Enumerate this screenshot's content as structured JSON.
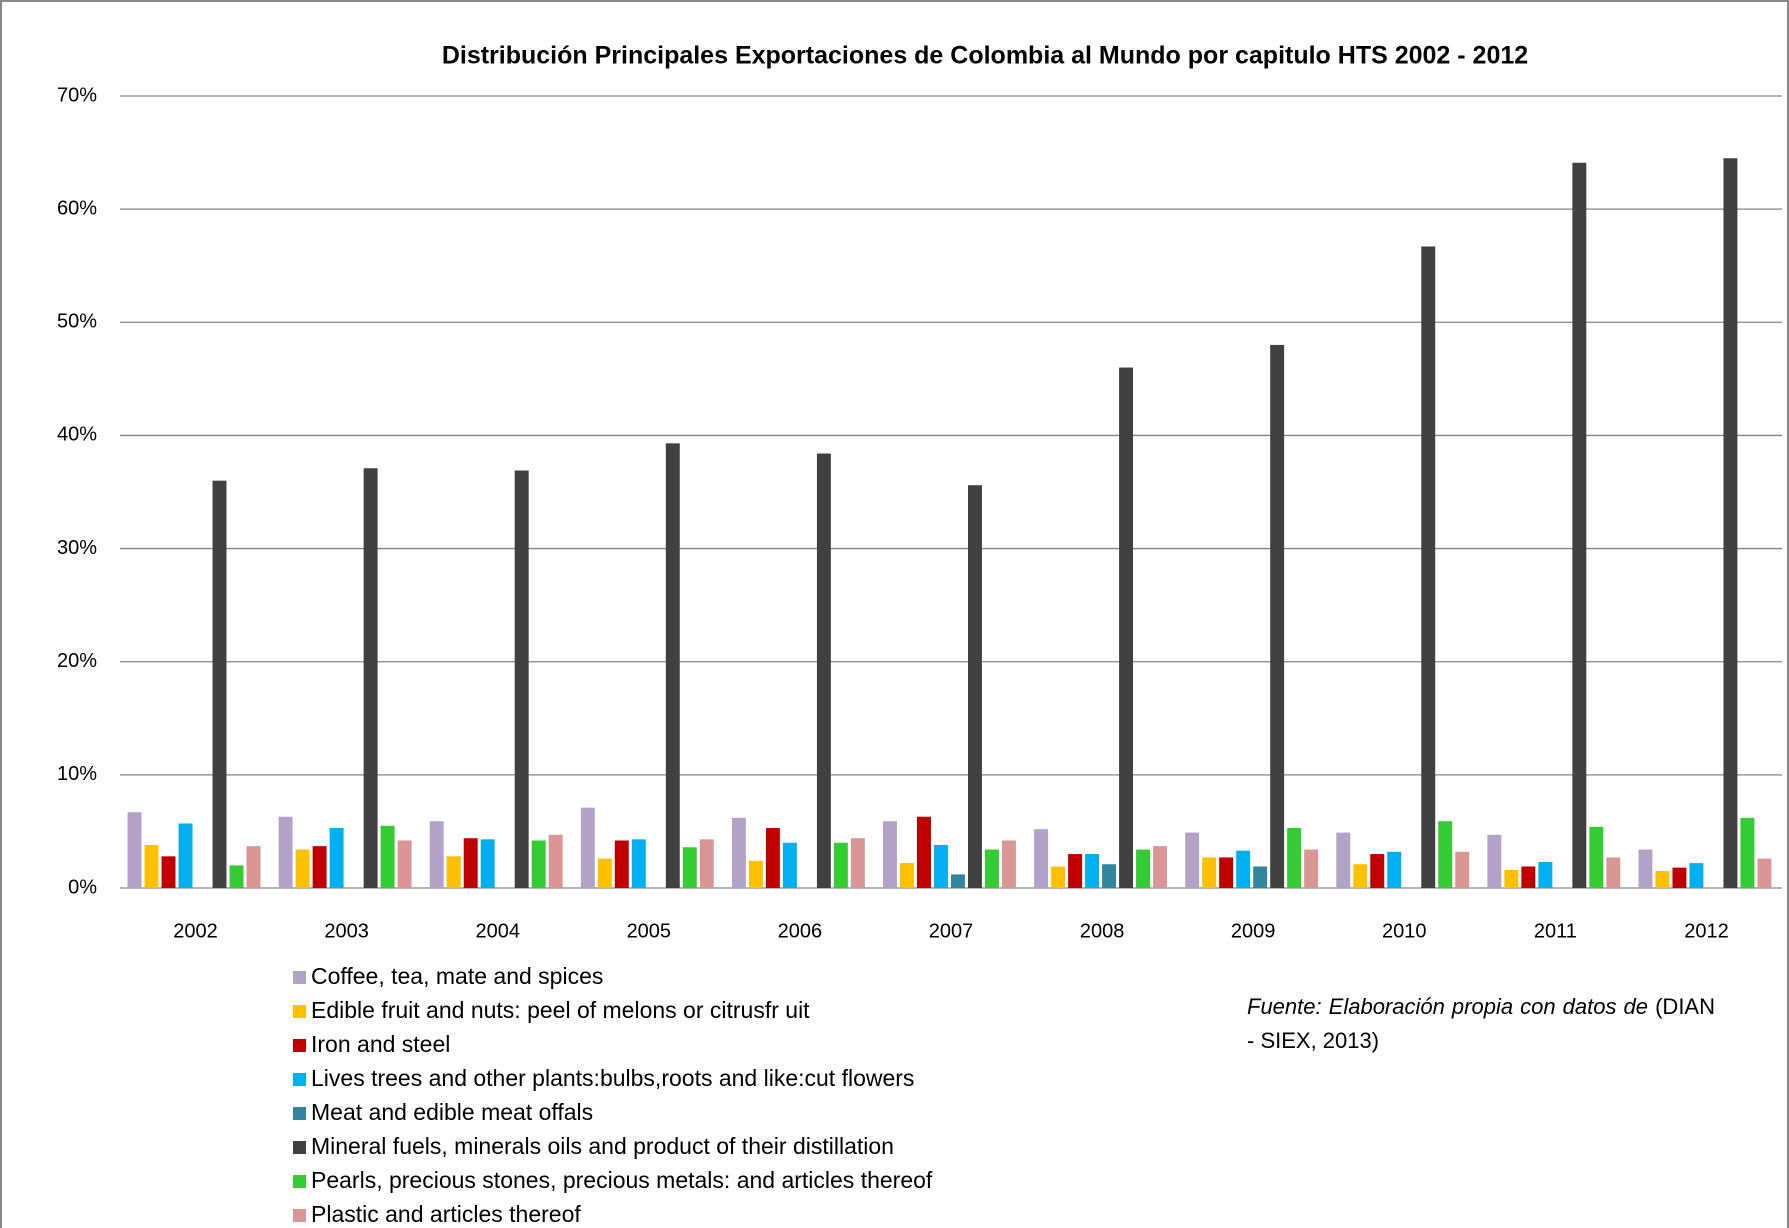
{
  "chart_data": {
    "type": "bar",
    "title": "Distribución Principales Exportaciones de Colombia al Mundo por capitulo HTS 2002 - 2012",
    "categories": [
      "2002",
      "2003",
      "2004",
      "2005",
      "2006",
      "2007",
      "2008",
      "2009",
      "2010",
      "2011",
      "2012"
    ],
    "series": [
      {
        "name": "Coffee, tea, mate and spices",
        "color": "#b3a2c7",
        "values": [
          6.7,
          6.3,
          5.9,
          7.1,
          6.2,
          5.9,
          5.2,
          4.9,
          4.9,
          4.7,
          3.4
        ]
      },
      {
        "name": "Edible fruit and nuts: peel of melons or citrusfr uit",
        "color": "#ffc000",
        "values": [
          3.8,
          3.4,
          2.8,
          2.6,
          2.4,
          2.2,
          1.9,
          2.7,
          2.1,
          1.6,
          1.5
        ]
      },
      {
        "name": "Iron and steel",
        "color": "#c00000",
        "values": [
          2.8,
          3.7,
          4.4,
          4.2,
          5.3,
          6.3,
          3.0,
          2.7,
          3.0,
          1.9,
          1.8
        ]
      },
      {
        "name": "Lives trees and other plants:bulbs,roots and like:cut flowers",
        "color": "#00b0f0",
        "values": [
          5.7,
          5.3,
          4.3,
          4.3,
          4.0,
          3.8,
          3.0,
          3.3,
          3.2,
          2.3,
          2.2
        ]
      },
      {
        "name": "Meat and edible meat offals",
        "color": "#31859c",
        "values": [
          0,
          0,
          0,
          0,
          0,
          1.2,
          2.1,
          1.9,
          0,
          0,
          0
        ]
      },
      {
        "name": "Mineral fuels, minerals oils and product of their distillation",
        "color": "#404040",
        "values": [
          36.0,
          37.1,
          36.9,
          39.3,
          38.4,
          35.6,
          46.0,
          48.0,
          56.7,
          64.1,
          64.5
        ]
      },
      {
        "name": "Pearls, precious stones, precious metals: and articles thereof",
        "color": "#33cc33",
        "values": [
          2.0,
          5.5,
          4.2,
          3.6,
          4.0,
          3.4,
          3.4,
          5.3,
          5.9,
          5.4,
          6.2
        ]
      },
      {
        "name": "Plastic and articles thereof",
        "color": "#d99694",
        "values": [
          3.7,
          4.2,
          4.7,
          4.3,
          4.4,
          4.2,
          3.7,
          3.4,
          3.2,
          2.7,
          2.6
        ]
      }
    ],
    "ylim": [
      0,
      70
    ],
    "yticks": [
      {
        "value": 0,
        "label": "0%"
      },
      {
        "value": 10,
        "label": "10%"
      },
      {
        "value": 20,
        "label": "20%"
      },
      {
        "value": 30,
        "label": "30%"
      },
      {
        "value": 40,
        "label": "40%"
      },
      {
        "value": 50,
        "label": "50%"
      },
      {
        "value": 60,
        "label": "60%"
      },
      {
        "value": 70,
        "label": "70%"
      }
    ],
    "grid": true,
    "annotation": {
      "italic": "Fuente: Elaboración propia con datos de",
      "text": "(DIAN - SIEX, 2013)"
    }
  }
}
